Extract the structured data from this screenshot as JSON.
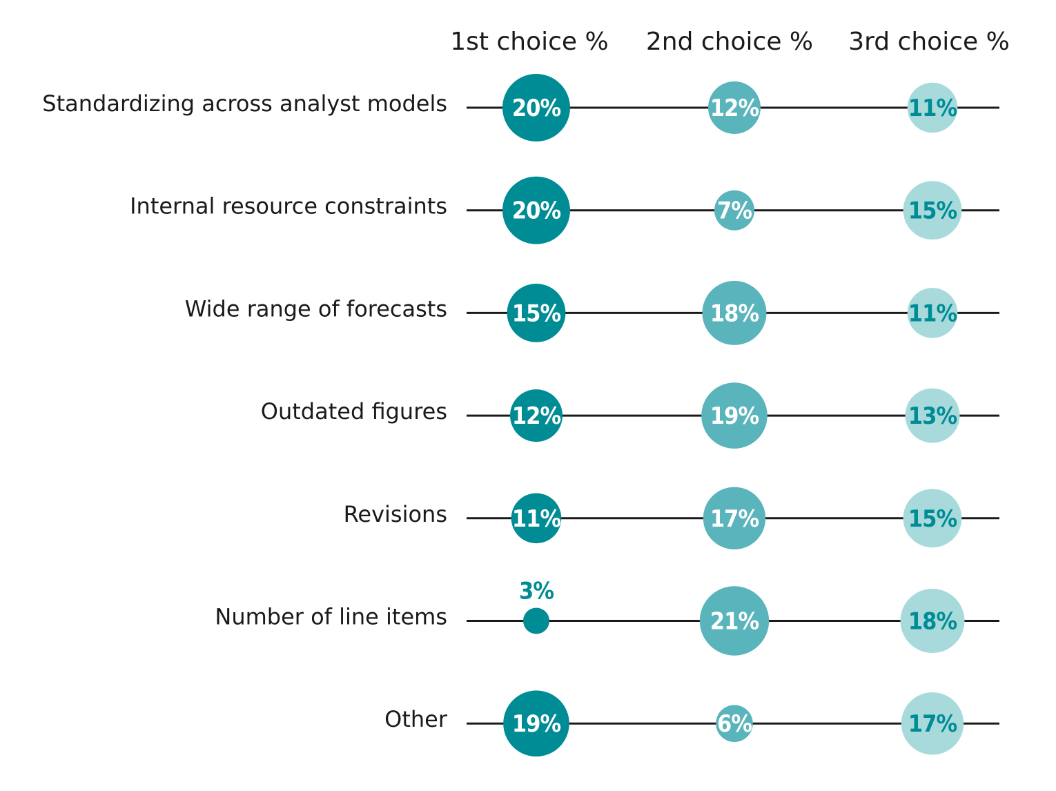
{
  "chart_data": {
    "type": "bubble-table",
    "columns": [
      "1st choice %",
      "2nd choice %",
      "3rd choice %"
    ],
    "rows": [
      {
        "label": "Standardizing across analyst models",
        "values": [
          20,
          12,
          11
        ],
        "display": [
          "20%",
          "12%",
          "11%"
        ]
      },
      {
        "label": "Internal resource constraints",
        "values": [
          20,
          7,
          15
        ],
        "display": [
          "20%",
          "7%",
          "15%"
        ]
      },
      {
        "label": "Wide range of forecasts",
        "values": [
          15,
          18,
          11
        ],
        "display": [
          "15%",
          "18%",
          "11%"
        ]
      },
      {
        "label": "Outdated figures",
        "values": [
          12,
          19,
          13
        ],
        "display": [
          "12%",
          "19%",
          "13%"
        ]
      },
      {
        "label": "Revisions",
        "values": [
          11,
          17,
          15
        ],
        "display": [
          "11%",
          "17%",
          "15%"
        ]
      },
      {
        "label": "Number of line items",
        "values": [
          3,
          21,
          18
        ],
        "display": [
          "3%",
          "21%",
          "18%"
        ]
      },
      {
        "label": "Other",
        "values": [
          19,
          6,
          17
        ],
        "display": [
          "19%",
          "6%",
          "17%"
        ]
      }
    ],
    "colors": {
      "col1_fill": "#008c95",
      "col2_fill": "#59b4bb",
      "col3_fill": "#a8dadc",
      "col1_text": "#ffffff",
      "col2_text": "#ffffff",
      "col3_text": "#008c95",
      "outside_text": "#008c95",
      "line": "#1a1a1a"
    }
  }
}
